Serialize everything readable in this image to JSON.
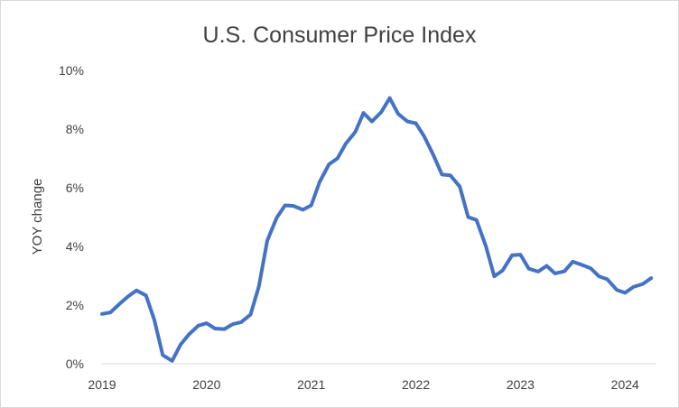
{
  "chart_data": {
    "type": "line",
    "title": "U.S. Consumer Price Index",
    "xlabel": "",
    "ylabel": "YOY change",
    "y_unit": "%",
    "ylim": [
      0,
      10
    ],
    "xlim": [
      2019,
      2024.3
    ],
    "y_ticks": [
      0,
      2,
      4,
      6,
      8,
      10
    ],
    "x_ticks": [
      2019,
      2020,
      2021,
      2022,
      2023,
      2024
    ],
    "x_tick_labels": [
      "2019",
      "2020",
      "2021",
      "2022",
      "2023",
      "2024"
    ],
    "y_tick_labels": [
      "0%",
      "2%",
      "4%",
      "6%",
      "8%",
      "10%"
    ],
    "series": [
      {
        "name": "CPI YOY change",
        "color": "#4472c4",
        "points": [
          [
            2019.0,
            1.7
          ],
          [
            2019.08,
            1.75
          ],
          [
            2019.17,
            2.05
          ],
          [
            2019.25,
            2.3
          ],
          [
            2019.33,
            2.5
          ],
          [
            2019.42,
            2.33
          ],
          [
            2019.5,
            1.5
          ],
          [
            2019.58,
            0.3
          ],
          [
            2019.67,
            0.1
          ],
          [
            2019.75,
            0.65
          ],
          [
            2019.83,
            1.0
          ],
          [
            2019.92,
            1.3
          ],
          [
            2020.0,
            1.38
          ],
          [
            2020.08,
            1.2
          ],
          [
            2020.17,
            1.18
          ],
          [
            2020.25,
            1.35
          ],
          [
            2020.33,
            1.42
          ],
          [
            2020.42,
            1.68
          ],
          [
            2020.5,
            2.65
          ],
          [
            2020.58,
            4.2
          ],
          [
            2020.67,
            4.98
          ],
          [
            2020.75,
            5.4
          ],
          [
            2020.83,
            5.38
          ],
          [
            2020.92,
            5.25
          ],
          [
            2021.0,
            5.4
          ],
          [
            2021.08,
            6.2
          ],
          [
            2021.17,
            6.8
          ],
          [
            2021.25,
            7.0
          ],
          [
            2021.33,
            7.5
          ],
          [
            2021.42,
            7.9
          ],
          [
            2021.5,
            8.55
          ],
          [
            2021.58,
            8.26
          ],
          [
            2021.67,
            8.58
          ],
          [
            2021.75,
            9.06
          ],
          [
            2021.83,
            8.52
          ],
          [
            2021.92,
            8.26
          ],
          [
            2022.0,
            8.2
          ],
          [
            2022.08,
            7.75
          ],
          [
            2022.17,
            7.1
          ],
          [
            2022.25,
            6.45
          ],
          [
            2022.33,
            6.42
          ],
          [
            2022.42,
            6.04
          ],
          [
            2022.5,
            5.0
          ],
          [
            2022.58,
            4.9
          ],
          [
            2022.67,
            4.0
          ],
          [
            2022.75,
            2.98
          ],
          [
            2022.83,
            3.18
          ],
          [
            2022.92,
            3.7
          ],
          [
            2023.0,
            3.72
          ],
          [
            2023.08,
            3.24
          ],
          [
            2023.17,
            3.14
          ],
          [
            2023.25,
            3.34
          ],
          [
            2023.33,
            3.08
          ],
          [
            2023.42,
            3.15
          ],
          [
            2023.5,
            3.48
          ],
          [
            2023.58,
            3.38
          ],
          [
            2023.67,
            3.26
          ],
          [
            2023.75,
            2.98
          ],
          [
            2023.83,
            2.88
          ],
          [
            2023.92,
            2.52
          ],
          [
            2024.0,
            2.42
          ],
          [
            2024.08,
            2.62
          ],
          [
            2024.17,
            2.72
          ],
          [
            2024.25,
            2.92
          ]
        ]
      }
    ]
  }
}
